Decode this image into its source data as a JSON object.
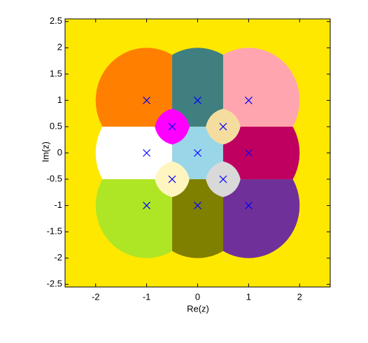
{
  "chart_data": {
    "type": "region",
    "xlabel": "Re(z)",
    "ylabel": "Im(z)",
    "xlim": [
      -2.6,
      2.6
    ],
    "ylim": [
      -2.55,
      2.55
    ],
    "xticks": [
      -2,
      -1,
      0,
      1,
      2
    ],
    "yticks": [
      -2.5,
      -2,
      -1.5,
      -1,
      -0.5,
      0,
      0.5,
      1,
      1.5,
      2,
      2.5
    ],
    "background": "#ffe800",
    "marker_color": "#0000ff",
    "regions": [
      {
        "x": -1,
        "y": 1,
        "color": "#ff7f00"
      },
      {
        "x": 0,
        "y": 1,
        "color": "#3f7f7f"
      },
      {
        "x": 1,
        "y": 1,
        "color": "#ffa5b0"
      },
      {
        "x": -1,
        "y": 0,
        "color": "#ffffff"
      },
      {
        "x": 0,
        "y": 0,
        "color": "#99d6e8"
      },
      {
        "x": 1,
        "y": 0,
        "color": "#c00060"
      },
      {
        "x": -1,
        "y": -1,
        "color": "#aee625"
      },
      {
        "x": 0,
        "y": -1,
        "color": "#7f7f00"
      },
      {
        "x": 1,
        "y": -1,
        "color": "#70309a"
      }
    ],
    "diamonds": [
      {
        "x": -0.5,
        "y": 0.5,
        "color": "#ff00ff"
      },
      {
        "x": 0.5,
        "y": 0.5,
        "color": "#f5dda0"
      },
      {
        "x": -0.5,
        "y": -0.5,
        "color": "#fff5c0"
      },
      {
        "x": 0.5,
        "y": -0.5,
        "color": "#d9d9d9"
      }
    ]
  }
}
